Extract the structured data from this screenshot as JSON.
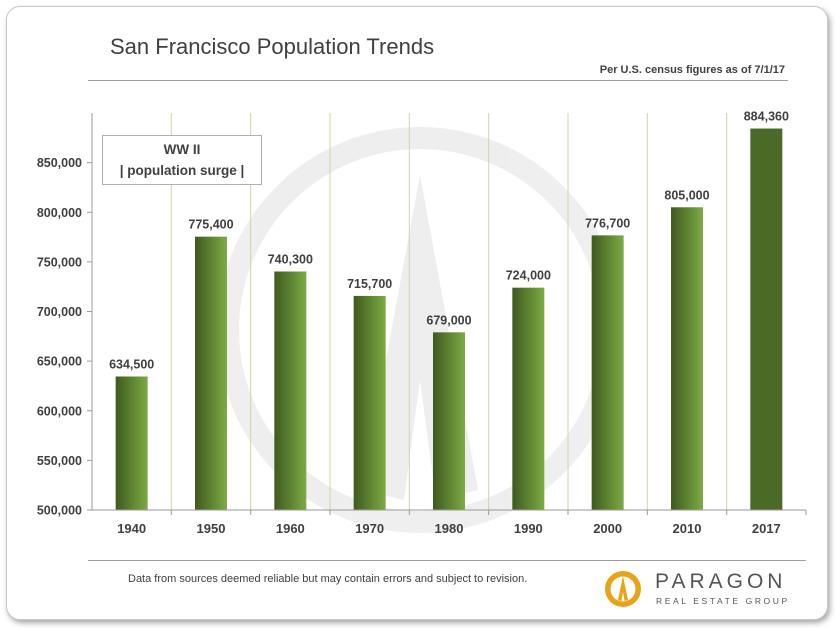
{
  "header": {
    "title": "San Francisco Population Trends",
    "subtitle": "Per U.S. census figures as of 7/1/17"
  },
  "annotation": {
    "line1": "WW II",
    "line2": "| population surge |"
  },
  "footer": {
    "note": "Data from sources deemed reliable but may contain errors and subject to revision."
  },
  "logo": {
    "wordmark": "PARAGON",
    "tagline": "REAL ESTATE GROUP",
    "icon": "paragon-flame-icon"
  },
  "colors": {
    "bar_gradient_dark": "#3f5a1e",
    "bar_gradient_light": "#7cab44",
    "highlight_bar": "#4a6a25",
    "grid": "#cbd9a0",
    "text": "#404040"
  },
  "chart_data": {
    "type": "bar",
    "title": "San Francisco Population Trends",
    "categories": [
      "1940",
      "1950",
      "1960",
      "1970",
      "1980",
      "1990",
      "2000",
      "2010",
      "2017"
    ],
    "values": [
      634500,
      775400,
      740300,
      715700,
      679000,
      724000,
      776700,
      805000,
      884360
    ],
    "data_labels": [
      "634,500",
      "775,400",
      "740,300",
      "715,700",
      "679,000",
      "724,000",
      "776,700",
      "805,000",
      "884,360"
    ],
    "ylim": [
      500000,
      900000
    ],
    "yticks": [
      500000,
      550000,
      600000,
      650000,
      700000,
      750000,
      800000,
      850000
    ],
    "ytick_labels": [
      "500,000",
      "550,000",
      "600,000",
      "650,000",
      "700,000",
      "750,000",
      "800,000",
      "850,000"
    ],
    "highlight_category": "2017",
    "xlabel": "",
    "ylabel": "",
    "grid": "vertical",
    "legend": "none"
  }
}
